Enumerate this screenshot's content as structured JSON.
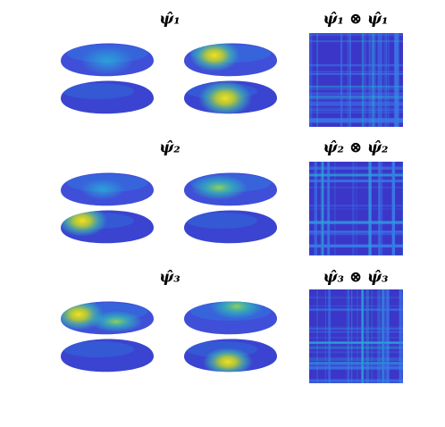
{
  "panels": [
    {
      "title": "ψ̂₁",
      "outer_product_title": "ψ̂₁ ⊗ ψ̂₁"
    },
    {
      "title": "ψ̂₂",
      "outer_product_title": "ψ̂₂ ⊗ ψ̂₂"
    },
    {
      "title": "ψ̂₃",
      "outer_product_title": "ψ̂₃ ⊗ ψ̂₃"
    }
  ]
}
